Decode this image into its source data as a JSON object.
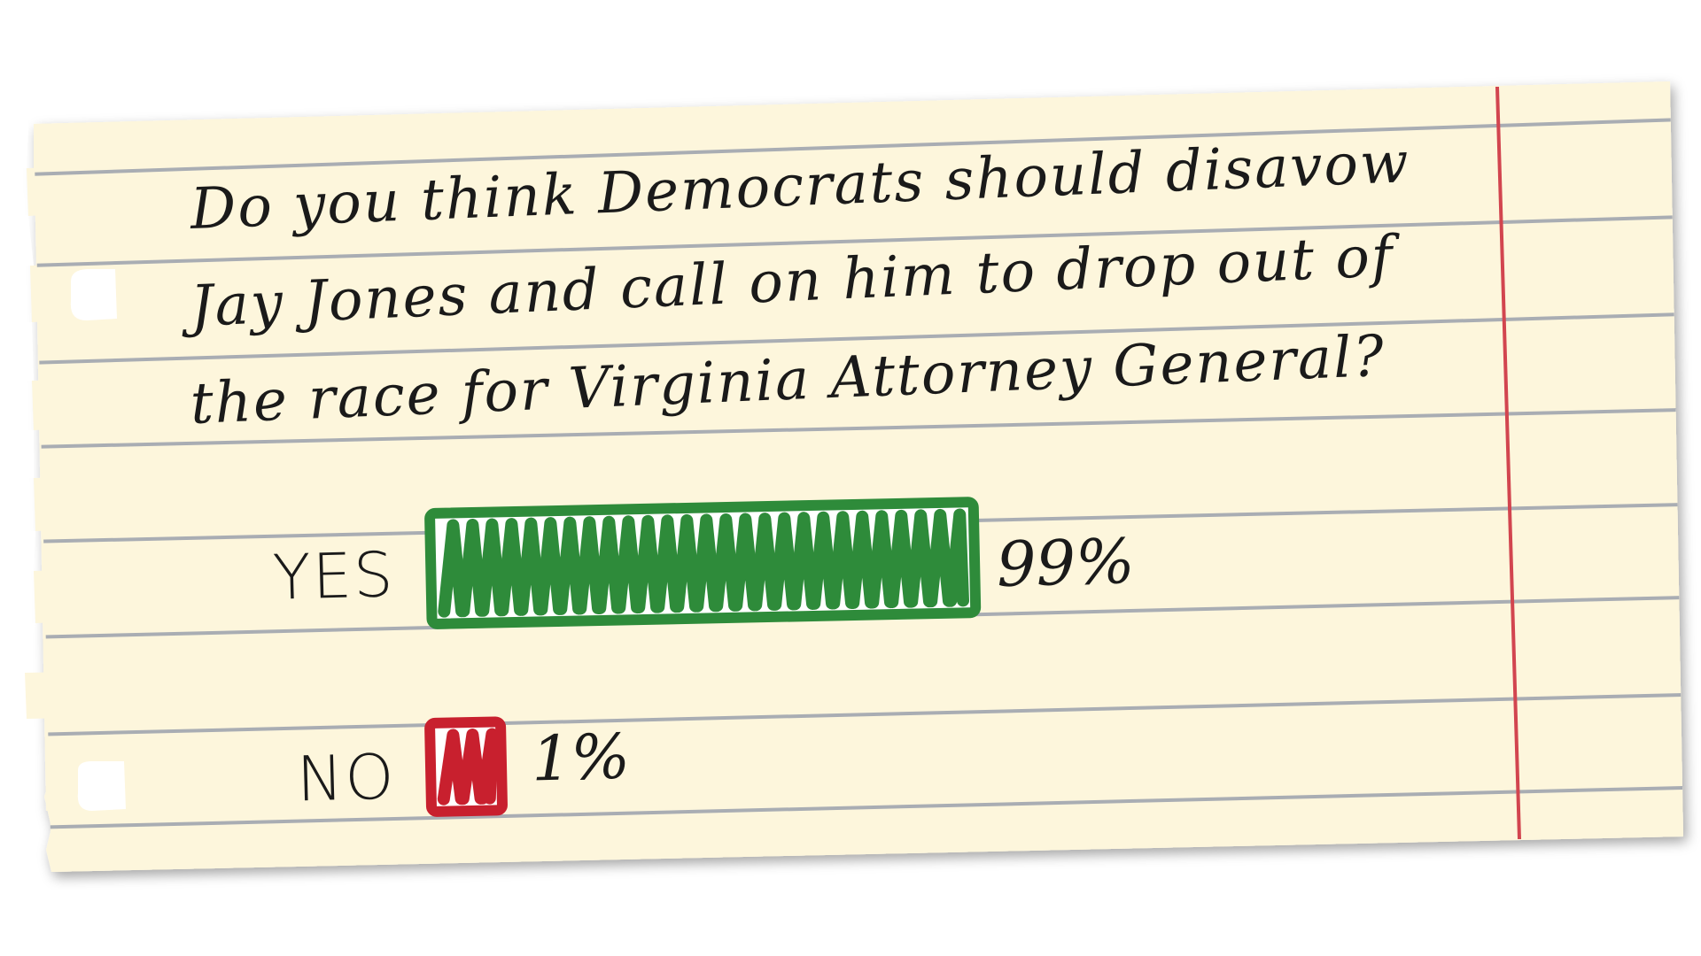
{
  "question": {
    "line1": "Do you think Democrats should disavow",
    "line2": "Jay Jones and call on him to drop out of",
    "line3": "the race for Virginia Attorney General?"
  },
  "chart_data": {
    "type": "bar",
    "orientation": "horizontal",
    "title": "Do you think Democrats should disavow Jay Jones and call on him to drop out of the race for Virginia Attorney General?",
    "categories": [
      "YES",
      "NO"
    ],
    "values": [
      99,
      1
    ],
    "value_labels": [
      "99%",
      "1%"
    ],
    "unit": "%",
    "xlim": [
      0,
      100
    ],
    "colors": [
      "#2e8b3a",
      "#c8202e"
    ],
    "grid": false,
    "legend": "none"
  },
  "style": {
    "paper_color": "#fdf6dc",
    "rule_color": "#a9adb3",
    "margin_line_color": "#d2454f",
    "ink_color": "#1a1a1a"
  }
}
